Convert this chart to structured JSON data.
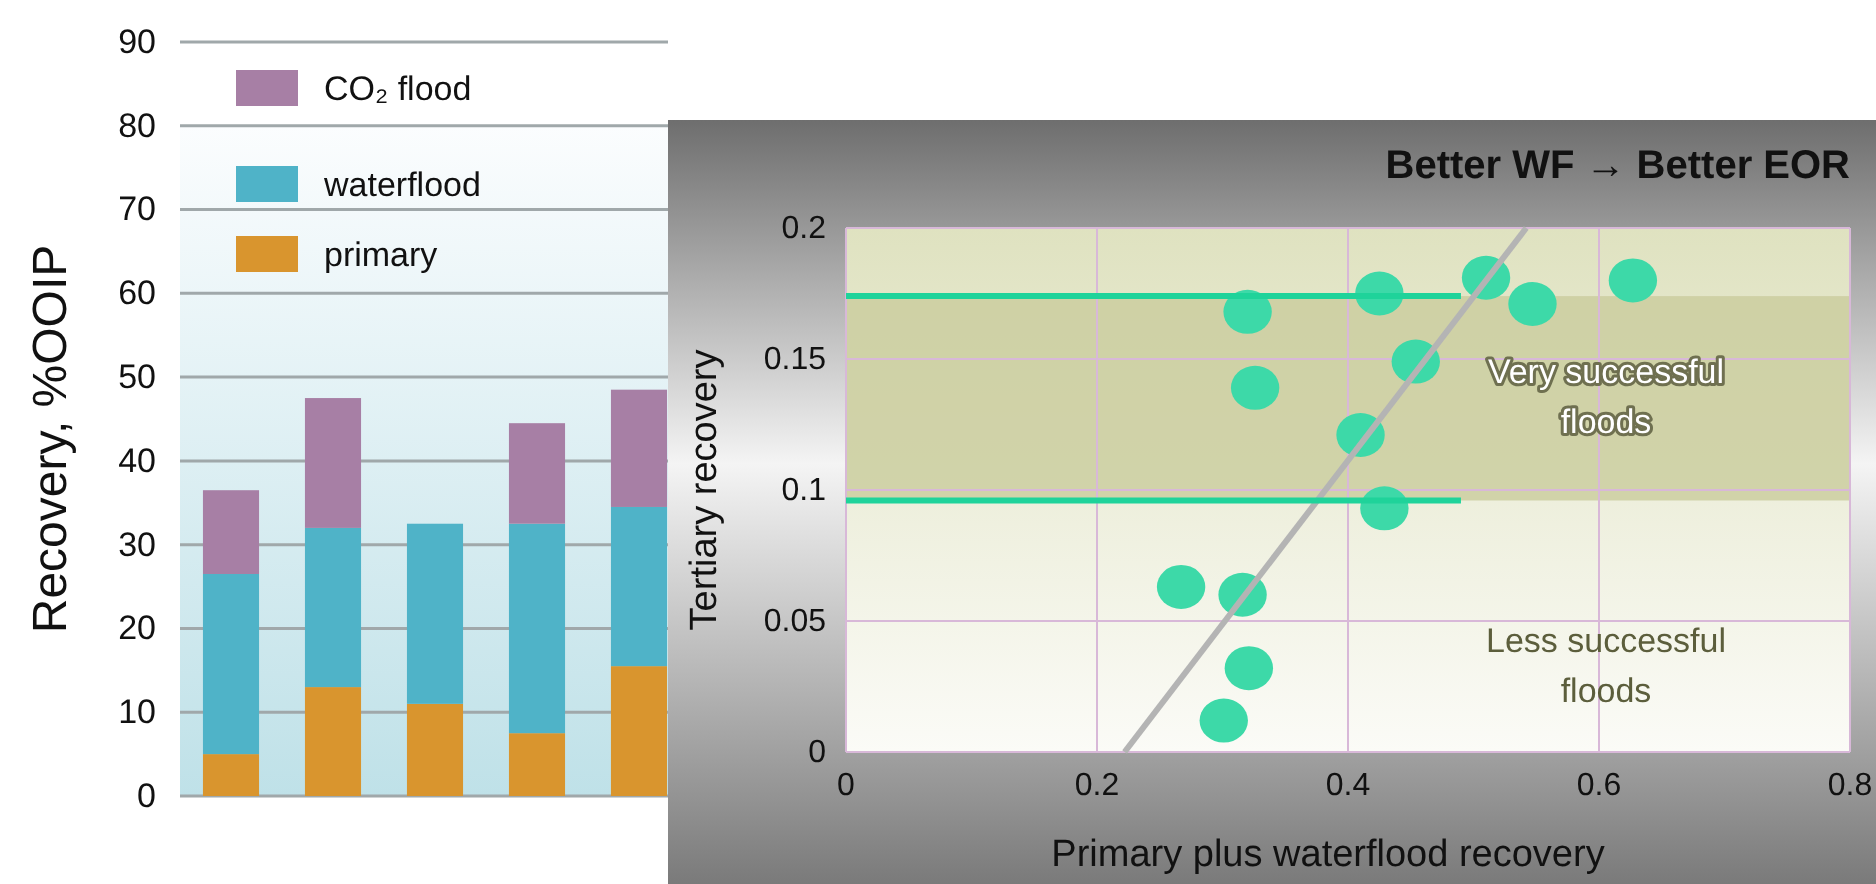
{
  "chart_data": [
    {
      "type": "bar",
      "ylabel": "Recovery, %OOIP",
      "categories": [
        null,
        null,
        null,
        null,
        null
      ],
      "stacked": true,
      "series": [
        {
          "name": "primary",
          "color": "#d9952e",
          "values": [
            5,
            13,
            11,
            7.5,
            15.5
          ]
        },
        {
          "name": "waterflood",
          "color": "#4fb3c8",
          "values": [
            21.5,
            19,
            21.5,
            25,
            19
          ]
        },
        {
          "name": "CO₂ flood",
          "color": "#a77fa5",
          "values": [
            10,
            15.5,
            null,
            12,
            14
          ]
        }
      ],
      "ylim": [
        0,
        90
      ],
      "yticks": [
        0,
        10,
        20,
        30,
        40,
        50,
        60,
        70,
        80,
        90
      ],
      "grid": "y",
      "legend": "top left"
    },
    {
      "type": "scatter",
      "title": "Better WF → Better EOR",
      "xlabel": "Primary plus waterflood recovery",
      "ylabel": "Tertiary recovery",
      "series": [
        {
          "type": "scatter",
          "color": "#3dd9a8",
          "marker": "circle",
          "x": [
            0.32,
            0.425,
            0.51,
            0.547,
            0.627,
            0.454,
            0.326,
            0.41,
            0.429,
            0.267,
            0.316,
            0.321,
            0.301
          ],
          "values": [
            0.168,
            0.175,
            0.181,
            0.171,
            0.18,
            0.149,
            0.139,
            0.121,
            0.093,
            0.063,
            0.06,
            0.032,
            0.012
          ]
        },
        {
          "type": "line",
          "color": "#b4b4b4",
          "marker": "none",
          "x": [
            0.222,
            0.542
          ],
          "values": [
            0,
            0.2
          ]
        },
        {
          "type": "line",
          "color": "#1fd39a",
          "marker": "none",
          "x": [
            0,
            0.49
          ],
          "values": [
            0.174,
            0.174
          ]
        },
        {
          "type": "line",
          "color": "#1fd39a",
          "marker": "none",
          "x": [
            0,
            0.49
          ],
          "values": [
            0.096,
            0.096
          ]
        }
      ],
      "bands": [
        {
          "axis": "y",
          "from": 0.096,
          "to": 0.174,
          "color": "#c9cc9c"
        }
      ],
      "annotations": [
        "Very successful floods",
        "Less successful floods"
      ],
      "xlim": [
        0,
        0.8
      ],
      "ylim": [
        0,
        0.2
      ],
      "xticks": [
        0,
        0.2,
        0.4,
        0.6,
        0.8
      ],
      "yticks": [
        0,
        0.05,
        0.1,
        0.15,
        0.2
      ],
      "grid": true
    }
  ]
}
